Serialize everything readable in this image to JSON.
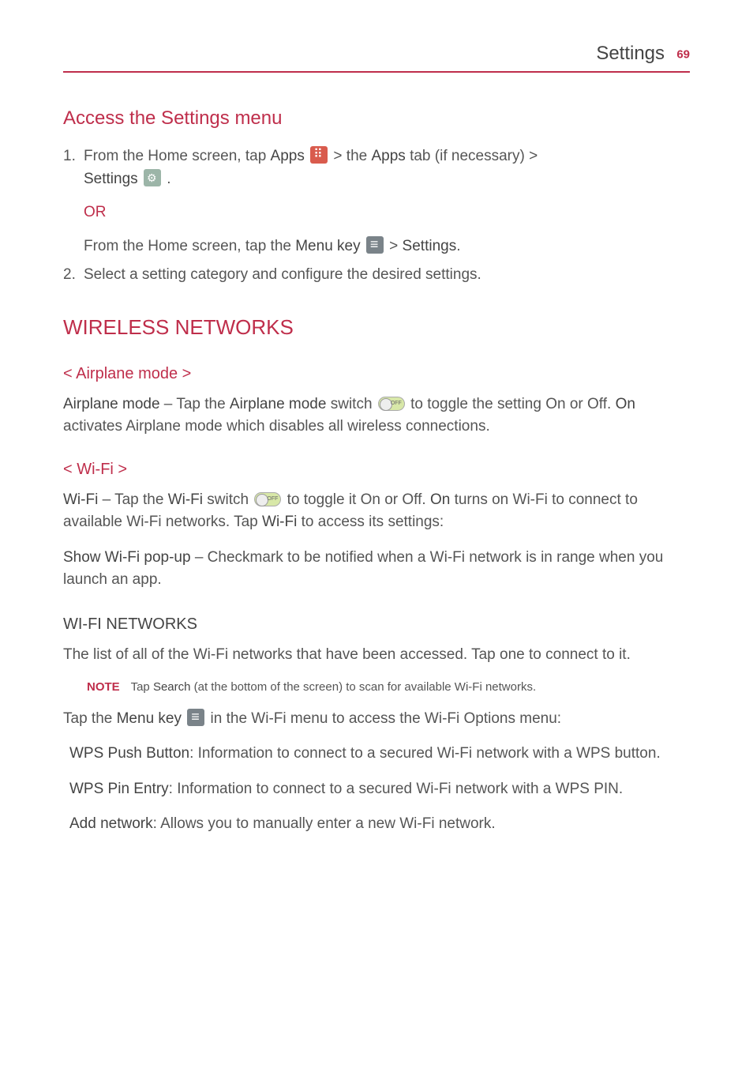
{
  "header": {
    "title": "Settings",
    "page": "69"
  },
  "s1": {
    "title": "Access the Settings menu",
    "step1_a": "From the Home screen, tap ",
    "step1_apps": "Apps",
    "step1_b": "  >  the ",
    "step1_apps2": "Apps",
    "step1_c": " tab (if necessary) > ",
    "step1_settings": "Settings",
    "step1_d": " .",
    "or": "OR",
    "alt_a": "From the Home screen, tap the ",
    "alt_menu": "Menu key",
    "alt_b": "  > ",
    "alt_settings": "Settings",
    "alt_c": ".",
    "step2": "Select a setting category and configure the desired settings."
  },
  "s2": {
    "title": "WIRELESS NETWORKS",
    "airplane_h": "< Airplane mode >",
    "airplane_b1": "Airplane mode",
    "airplane_t1": " – Tap the ",
    "airplane_b2": "Airplane mode",
    "airplane_t2": " switch ",
    "airplane_t3": " to toggle the setting On or Off. ",
    "airplane_b3": "On",
    "airplane_t4": " activates Airplane mode which disables all wireless connections.",
    "wifi_h": "< Wi-Fi >",
    "wifi_b1": "Wi-Fi",
    "wifi_t1": " – Tap the ",
    "wifi_b2": "Wi-Fi",
    "wifi_t2": " switch ",
    "wifi_t3": " to toggle it On or Off. ",
    "wifi_b3": "On",
    "wifi_t4": " turns on Wi-Fi to connect to available Wi-Fi networks. Tap ",
    "wifi_b4": "Wi-Fi",
    "wifi_t5": " to access its settings:",
    "show_b": "Show Wi-Fi pop-up",
    "show_t": " – Checkmark to be notified when a Wi-Fi network is in range when you launch an app."
  },
  "s3": {
    "title": "WI-FI NETWORKS",
    "intro": "The list of all of the Wi-Fi networks that have been accessed. Tap one to connect to it.",
    "note_label": "NOTE",
    "note_a": "Tap ",
    "note_b": "Search",
    "note_c": " (at the bottom of the screen) to scan for available Wi-Fi networks.",
    "menu_a": "Tap the ",
    "menu_b": "Menu key",
    "menu_c": " in the Wi-Fi menu to access the Wi-Fi Options menu:",
    "wps_push_b": "WPS Push Button",
    "wps_push_t": ": Information to connect to a secured Wi-Fi network with a WPS button.",
    "wps_pin_b": "WPS Pin Entry",
    "wps_pin_t": ": Information to connect to a secured Wi-Fi network with a WPS PIN.",
    "add_b": "Add network",
    "add_t": ": Allows you to manually enter a new Wi-Fi network."
  }
}
